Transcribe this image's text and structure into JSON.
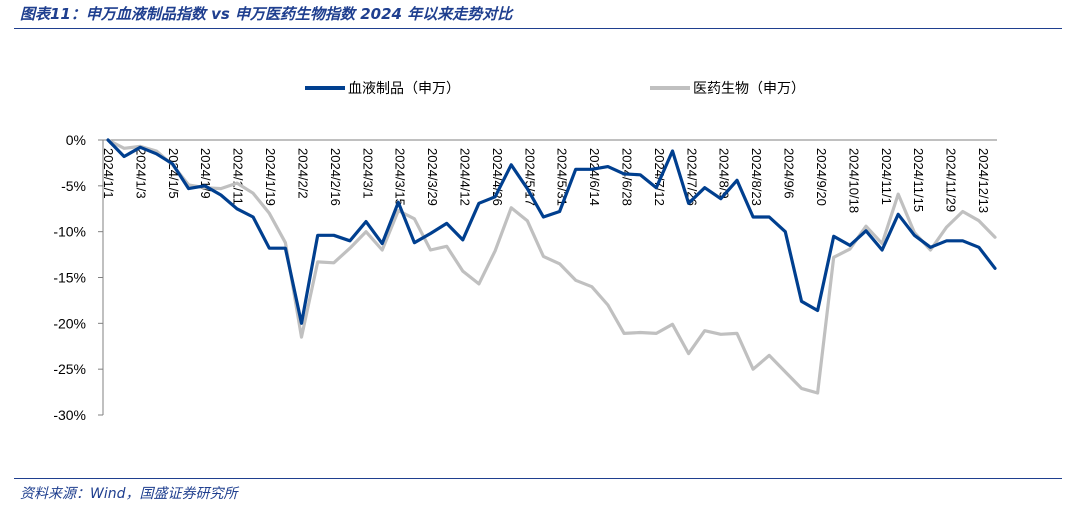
{
  "header": {
    "title": "图表11：申万血液制品指数 vs 申万医药生物指数 2024 年以来走势对比"
  },
  "footer": {
    "source": "资料来源：Wind，国盛证券研究所"
  },
  "colors": {
    "series1": "#003f8f",
    "series2": "#c0c0c0",
    "axis": "#808080",
    "rule": "#1f3f8f"
  },
  "chart_data": {
    "type": "line",
    "title": "",
    "xlabel": "",
    "ylabel": "",
    "ylim": [
      -30,
      0
    ],
    "yticks": [
      0,
      -5,
      -10,
      -15,
      -20,
      -25,
      -30
    ],
    "ytick_labels": [
      "0%",
      "-5%",
      "-10%",
      "-15%",
      "-20%",
      "-25%",
      "-30%"
    ],
    "grid": false,
    "legend": "top-center",
    "x_tick_labels": [
      "2024/1/1",
      "2024/1/3",
      "2024/1/5",
      "2024/1/9",
      "2024/1/11",
      "2024/1/19",
      "2024/2/2",
      "2024/2/16",
      "2024/3/1",
      "2024/3/15",
      "2024/3/29",
      "2024/4/12",
      "2024/4/26",
      "2024/5/17",
      "2024/5/31",
      "2024/6/14",
      "2024/6/28",
      "2024/7/12",
      "2024/7/26",
      "2024/8/9",
      "2024/8/23",
      "2024/9/6",
      "2024/9/20",
      "2024/10/18",
      "2024/11/1",
      "2024/11/15",
      "2024/11/29",
      "2024/12/13"
    ],
    "series": [
      {
        "name": "血液制品（申万）",
        "values": [
          0.0,
          -1.8,
          -0.8,
          -1.5,
          -2.6,
          -5.3,
          -5.0,
          -6.0,
          -7.5,
          -8.4,
          -11.8,
          -11.8,
          -20.0,
          -10.4,
          -10.4,
          -11.0,
          -8.9,
          -11.3,
          -6.8,
          -11.2,
          -10.2,
          -9.1,
          -10.9,
          -6.9,
          -6.2,
          -2.7,
          -5.3,
          -8.4,
          -7.8,
          -3.2,
          -3.2,
          -2.9,
          -3.7,
          -3.8,
          -5.2,
          -1.2,
          -6.9,
          -5.2,
          -6.4,
          -4.4,
          -8.4,
          -8.4,
          -10.0,
          -17.6,
          -18.6,
          -10.5,
          -11.5,
          -9.9,
          -12.0,
          -8.1,
          -10.4,
          -11.7,
          -11.0,
          -11.0,
          -11.7,
          -14.0
        ]
      },
      {
        "name": "医药生物（申万）",
        "values": [
          0.0,
          -0.9,
          -0.7,
          -1.2,
          -2.7,
          -4.9,
          -5.2,
          -5.3,
          -4.7,
          -5.8,
          -8.0,
          -11.2,
          -21.5,
          -13.3,
          -13.4,
          -11.8,
          -10.0,
          -12.0,
          -7.7,
          -8.6,
          -12.0,
          -11.6,
          -14.3,
          -15.7,
          -12.1,
          -7.4,
          -8.8,
          -12.7,
          -13.5,
          -15.3,
          -16.0,
          -18.0,
          -21.1,
          -21.0,
          -21.1,
          -20.1,
          -23.3,
          -20.8,
          -21.2,
          -21.1,
          -25.0,
          -23.5,
          -25.3,
          -27.1,
          -27.6,
          -12.8,
          -11.9,
          -9.4,
          -11.3,
          -5.9,
          -10.1,
          -12.0,
          -9.5,
          -7.8,
          -8.8,
          -10.6
        ]
      }
    ]
  }
}
